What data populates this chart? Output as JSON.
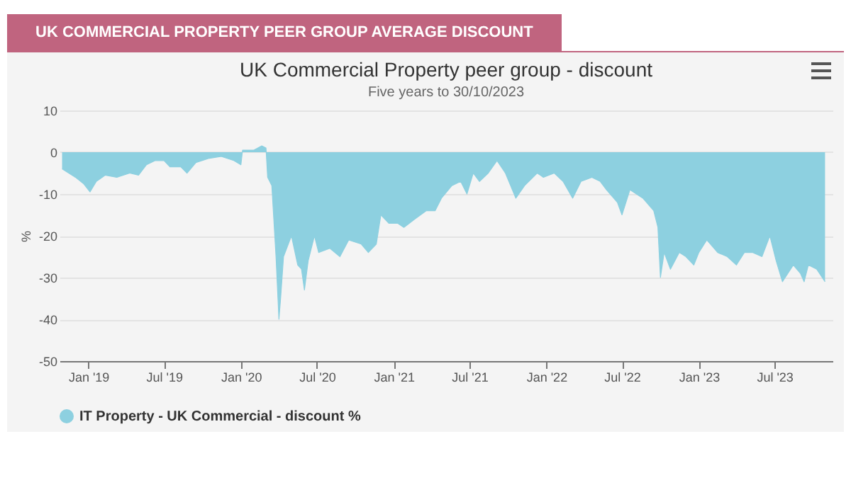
{
  "chart_data": {
    "type": "area",
    "title": "UK Commercial Property peer group - discount",
    "subtitle": "Five years to 30/10/2023",
    "ylabel": "%",
    "annotations": [
      "UK COMMERCIAL PROPERTY PEER GROUP AVERAGE DISCOUNT"
    ],
    "x": [
      "2018-10-30",
      "2018-11-15",
      "2018-12-01",
      "2018-12-20",
      "2019-01-05",
      "2019-01-20",
      "2019-02-10",
      "2019-03-10",
      "2019-04-10",
      "2019-05-01",
      "2019-05-20",
      "2019-06-10",
      "2019-07-01",
      "2019-07-15",
      "2019-08-10",
      "2019-08-25",
      "2019-09-15",
      "2019-10-15",
      "2019-11-15",
      "2019-12-15",
      "2020-01-01",
      "2020-01-05",
      "2020-02-01",
      "2020-02-20",
      "2020-03-01",
      "2020-03-05",
      "2020-03-15",
      "2020-03-25",
      "2020-04-01",
      "2020-04-05",
      "2020-04-12",
      "2020-05-01",
      "2020-05-16",
      "2020-05-25",
      "2020-06-01",
      "2020-06-10",
      "2020-06-25",
      "2020-07-05",
      "2020-08-01",
      "2020-08-25",
      "2020-09-15",
      "2020-10-15",
      "2020-11-01",
      "2020-11-20",
      "2020-12-01",
      "2020-12-20",
      "2021-01-10",
      "2021-01-25",
      "2021-02-20",
      "2021-03-20",
      "2021-04-10",
      "2021-04-25",
      "2021-05-20",
      "2021-06-10",
      "2021-06-25",
      "2021-07-10",
      "2021-07-25",
      "2021-08-15",
      "2021-09-05",
      "2021-09-25",
      "2021-10-20",
      "2021-11-10",
      "2021-12-10",
      "2021-12-25",
      "2022-01-20",
      "2022-02-10",
      "2022-03-05",
      "2022-03-25",
      "2022-04-20",
      "2022-05-10",
      "2022-05-25",
      "2022-06-20",
      "2022-07-01",
      "2022-07-20",
      "2022-08-20",
      "2022-09-15",
      "2022-09-25",
      "2022-10-01",
      "2022-10-10",
      "2022-10-25",
      "2022-11-15",
      "2022-12-01",
      "2022-12-20",
      "2023-01-01",
      "2023-01-20",
      "2023-02-15",
      "2023-03-10",
      "2023-04-01",
      "2023-04-20",
      "2023-05-10",
      "2023-06-01",
      "2023-06-20",
      "2023-07-05",
      "2023-07-20",
      "2023-08-15",
      "2023-09-01",
      "2023-09-10",
      "2023-09-20",
      "2023-10-10",
      "2023-10-30"
    ],
    "series": [
      {
        "name": "IT Property - UK Commercial - discount %",
        "color": "#8dd0e0",
        "values": [
          -4,
          -5,
          -6,
          -7.5,
          -9.5,
          -7,
          -5.5,
          -6,
          -5,
          -5.5,
          -3,
          -2,
          -2,
          -3.5,
          -3.5,
          -5,
          -2.5,
          -1.5,
          -1,
          -2,
          -3,
          0.5,
          0.5,
          1.5,
          1,
          -6,
          -8,
          -25,
          -40,
          -35,
          -25,
          -20,
          -27,
          -28,
          -33,
          -26,
          -20,
          -24,
          -23,
          -25,
          -21,
          -22,
          -24,
          -22,
          -15,
          -17,
          -17,
          -18,
          -16,
          -14,
          -14,
          -11,
          -8,
          -7,
          -10,
          -5,
          -7,
          -5,
          -2,
          -5,
          -11,
          -8,
          -5,
          -6,
          -5,
          -7,
          -11,
          -7,
          -6,
          -7,
          -9,
          -12,
          -15,
          -9,
          -11,
          -14,
          -18,
          -30,
          -24,
          -28,
          -24,
          -25,
          -27,
          -24,
          -21,
          -24,
          -25,
          -27,
          -24,
          -24,
          -25,
          -20,
          -26,
          -31,
          -27,
          -29,
          -31,
          -27,
          -28,
          -31
        ]
      }
    ],
    "xlim": [
      "2018-10-24",
      "2023-11-17"
    ],
    "xticks": [
      {
        "value": "2019-01-01",
        "label": "Jan '19"
      },
      {
        "value": "2019-07-01",
        "label": "Jul '19"
      },
      {
        "value": "2020-01-01",
        "label": "Jan '20"
      },
      {
        "value": "2020-07-01",
        "label": "Jul '20"
      },
      {
        "value": "2021-01-01",
        "label": "Jan '21"
      },
      {
        "value": "2021-07-01",
        "label": "Jul '21"
      },
      {
        "value": "2022-01-01",
        "label": "Jan '22"
      },
      {
        "value": "2022-07-01",
        "label": "Jul '22"
      },
      {
        "value": "2023-01-01",
        "label": "Jan '23"
      },
      {
        "value": "2023-07-01",
        "label": "Jul '23"
      }
    ],
    "ylim": [
      -50,
      10
    ],
    "yticks": [
      -50,
      -40,
      -30,
      -20,
      -10,
      0,
      10
    ],
    "grid": "y",
    "legend": "bottom"
  }
}
